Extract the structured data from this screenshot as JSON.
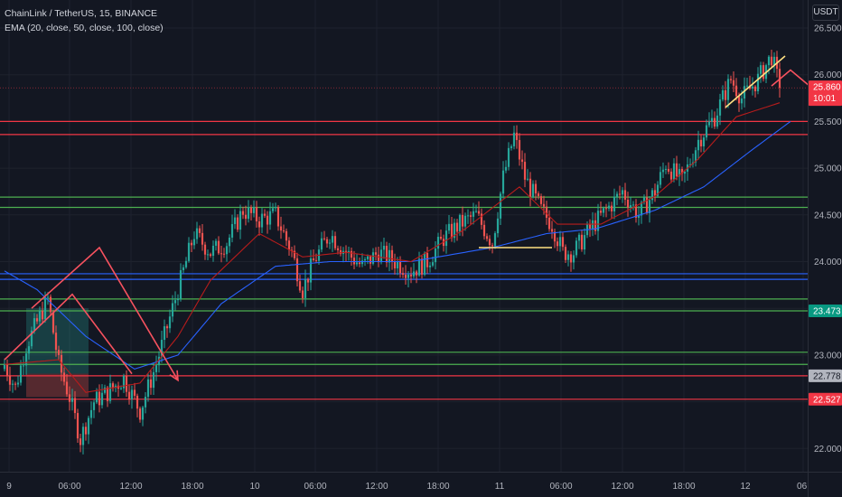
{
  "header": {
    "title": "ChainLink / TetherUS, 15, BINANCE",
    "indicator": "EMA (20, close, 50, close, 100, close)"
  },
  "price_axis": {
    "unit": "USDT",
    "ticks": [
      "26.500",
      "26.000",
      "25.500",
      "25.000",
      "24.500",
      "24.000",
      "23.500",
      "23.000",
      "22.500",
      "22.000"
    ],
    "badges": [
      {
        "label": "25.860",
        "sub": "10:01",
        "color": "#f23645",
        "value": 25.86
      },
      {
        "label": "23.473",
        "color": "#089981",
        "value": 23.473
      },
      {
        "label": "22.778",
        "color": "#b2b5be",
        "value": 22.778
      },
      {
        "label": "22.527",
        "color": "#f23645",
        "value": 22.527
      }
    ]
  },
  "time_axis": {
    "ticks": [
      "9",
      "06:00",
      "12:00",
      "18:00",
      "10",
      "06:00",
      "12:00",
      "18:00",
      "11",
      "06:00",
      "12:00",
      "18:00",
      "12",
      "06:"
    ]
  },
  "colors": {
    "background": "#131722",
    "grid": "#1e222d",
    "up": "#26a69a",
    "down": "#ef5350",
    "ema20": "#b71c1c",
    "ema50": "#2962ff",
    "support": "#4caf50",
    "resistance": "#f23645",
    "zone_blue": "#2962ff",
    "projection": "#f7525f",
    "trend": "#ffe082"
  },
  "chart_data": {
    "type": "candlestick",
    "title": "ChainLink / TetherUS, 15, BINANCE",
    "ylim": [
      21.7,
      26.8
    ],
    "ylabel": "USDT",
    "ohlc_anchors": [
      [
        0,
        22.9
      ],
      [
        4,
        22.65
      ],
      [
        8,
        23.1
      ],
      [
        12,
        23.35
      ],
      [
        16,
        23.6
      ],
      [
        20,
        22.9
      ],
      [
        24,
        22.55
      ],
      [
        28,
        22.1
      ],
      [
        33,
        22.5
      ],
      [
        38,
        22.6
      ],
      [
        44,
        22.75
      ],
      [
        50,
        22.4
      ],
      [
        56,
        22.9
      ],
      [
        60,
        23.3
      ],
      [
        64,
        23.7
      ],
      [
        70,
        24.3
      ],
      [
        76,
        24.1
      ],
      [
        82,
        24.2
      ],
      [
        88,
        24.55
      ],
      [
        94,
        24.45
      ],
      [
        100,
        24.5
      ],
      [
        106,
        24.1
      ],
      [
        110,
        23.7
      ],
      [
        114,
        24.0
      ],
      [
        120,
        24.3
      ],
      [
        126,
        24.1
      ],
      [
        132,
        23.95
      ],
      [
        138,
        24.1
      ],
      [
        144,
        24.0
      ],
      [
        150,
        23.9
      ],
      [
        156,
        24.0
      ],
      [
        162,
        24.25
      ],
      [
        168,
        24.4
      ],
      [
        174,
        24.5
      ],
      [
        180,
        24.2
      ],
      [
        184,
        24.9
      ],
      [
        188,
        25.35
      ],
      [
        192,
        24.9
      ],
      [
        198,
        24.55
      ],
      [
        202,
        24.4
      ],
      [
        206,
        24.1
      ],
      [
        210,
        24.1
      ],
      [
        216,
        24.35
      ],
      [
        222,
        24.55
      ],
      [
        228,
        24.75
      ],
      [
        234,
        24.5
      ],
      [
        240,
        24.75
      ],
      [
        244,
        25.05
      ],
      [
        250,
        24.85
      ],
      [
        256,
        25.3
      ],
      [
        262,
        25.55
      ],
      [
        268,
        25.95
      ],
      [
        272,
        25.75
      ],
      [
        278,
        25.95
      ],
      [
        283,
        26.2
      ],
      [
        286,
        25.86
      ]
    ],
    "ema20_anchors": [
      [
        0,
        22.9
      ],
      [
        20,
        22.95
      ],
      [
        30,
        22.6
      ],
      [
        50,
        22.7
      ],
      [
        64,
        23.2
      ],
      [
        76,
        23.8
      ],
      [
        94,
        24.3
      ],
      [
        110,
        24.05
      ],
      [
        126,
        24.1
      ],
      [
        150,
        24.0
      ],
      [
        170,
        24.35
      ],
      [
        190,
        24.8
      ],
      [
        204,
        24.4
      ],
      [
        220,
        24.4
      ],
      [
        240,
        24.7
      ],
      [
        256,
        25.1
      ],
      [
        270,
        25.55
      ],
      [
        286,
        25.7
      ]
    ],
    "ema50_anchors": [
      [
        0,
        23.9
      ],
      [
        12,
        23.7
      ],
      [
        30,
        23.2
      ],
      [
        48,
        22.85
      ],
      [
        64,
        23.0
      ],
      [
        80,
        23.55
      ],
      [
        100,
        23.95
      ],
      [
        120,
        24.0
      ],
      [
        150,
        24.0
      ],
      [
        180,
        24.15
      ],
      [
        200,
        24.3
      ],
      [
        218,
        24.35
      ],
      [
        240,
        24.55
      ],
      [
        258,
        24.8
      ],
      [
        276,
        25.2
      ],
      [
        290,
        25.5
      ]
    ],
    "hlines": [
      {
        "price": 25.86,
        "kind": "last"
      },
      {
        "price": 25.5,
        "kind": "resistance"
      },
      {
        "price": 25.36,
        "kind": "resistance"
      },
      {
        "price": 24.69,
        "kind": "support"
      },
      {
        "price": 24.58,
        "kind": "support"
      },
      {
        "price": 23.87,
        "kind": "zone"
      },
      {
        "price": 23.81,
        "kind": "zone"
      },
      {
        "price": 23.6,
        "kind": "support"
      },
      {
        "price": 23.473,
        "kind": "support"
      },
      {
        "price": 23.03,
        "kind": "support"
      },
      {
        "price": 22.9,
        "kind": "support"
      },
      {
        "price": 22.778,
        "kind": "resistance"
      },
      {
        "price": 22.527,
        "kind": "resistance"
      }
    ],
    "position_box": {
      "from": 8,
      "to": 31,
      "entry": 22.8,
      "target": 23.5,
      "stop": 22.55
    },
    "trend_lines": [
      {
        "points": [
          [
            175,
            24.15
          ],
          [
            202,
            24.15
          ]
        ]
      },
      {
        "points": [
          [
            266,
            25.65
          ],
          [
            288,
            26.2
          ]
        ]
      }
    ],
    "projections": [
      {
        "points": [
          [
            10,
            23.5
          ],
          [
            35,
            24.15
          ],
          [
            64,
            22.73
          ]
        ]
      },
      {
        "points": [
          [
            0,
            22.95
          ],
          [
            25,
            23.65
          ],
          [
            47,
            22.8
          ]
        ]
      },
      {
        "points": [
          [
            283,
            25.88
          ],
          [
            290,
            26.05
          ],
          [
            297,
            25.88
          ],
          [
            305,
            25.6
          ],
          [
            310,
            25.5
          ],
          [
            318,
            25.45
          ],
          [
            325,
            25.68
          ],
          [
            330,
            25.5
          ],
          [
            350,
            26.6
          ]
        ]
      }
    ]
  }
}
